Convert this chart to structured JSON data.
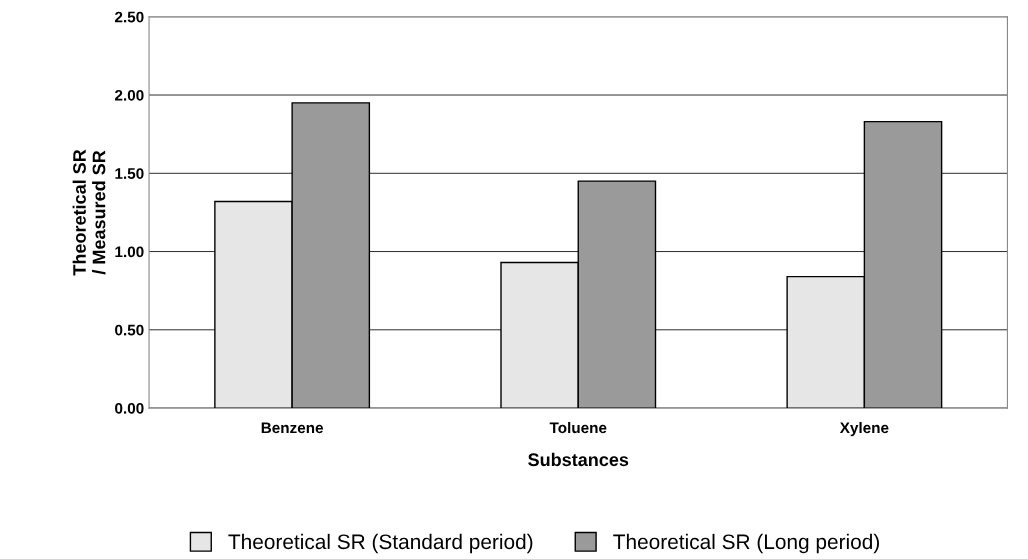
{
  "chart_data": {
    "type": "bar",
    "xlabel": "Substances",
    "ylabel": "Theoretical SR\n/ Measured SR",
    "categories": [
      "Benzene",
      "Toluene",
      "Xylene"
    ],
    "series": [
      {
        "name": "Theoretical SR (Standard period)",
        "color": "#e6e6e6",
        "values": [
          1.32,
          0.93,
          0.84
        ]
      },
      {
        "name": "Theoretical SR (Long period)",
        "color": "#9a9a9a",
        "values": [
          1.95,
          1.45,
          1.83
        ]
      }
    ],
    "ylim": [
      0,
      2.5
    ],
    "yticks": [
      {
        "value": 0,
        "label": "0.00"
      },
      {
        "value": 0.5,
        "label": "0.50"
      },
      {
        "value": 1,
        "label": "1.00"
      },
      {
        "value": 1.5,
        "label": "1.50"
      },
      {
        "value": 2,
        "label": "2.00"
      },
      {
        "value": 2.5,
        "label": "2.50"
      }
    ],
    "grid": "y",
    "legend": "bottom"
  }
}
